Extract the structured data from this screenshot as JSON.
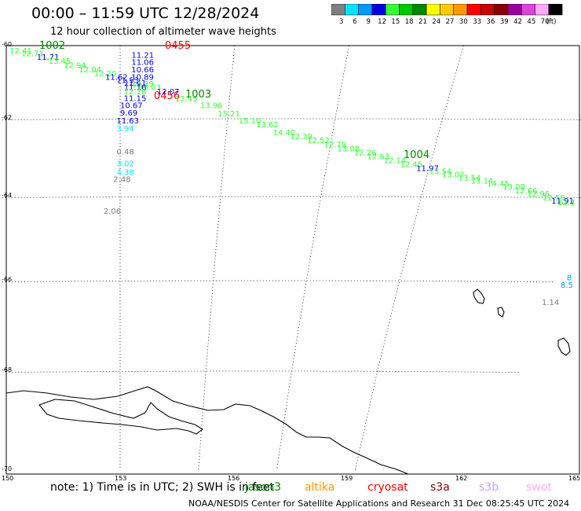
{
  "header": {
    "title": "00:00 – 11:59 UTC 12/28/2024",
    "subtitle": "12 hour collection of altimeter wave heights"
  },
  "color_scale": {
    "unit": "(ft)",
    "bins": [
      {
        "label": "3",
        "color": "#7f7f7f"
      },
      {
        "label": "6",
        "color": "#00e5ff"
      },
      {
        "label": "9",
        "color": "#0099ff"
      },
      {
        "label": "12",
        "color": "#0000e0"
      },
      {
        "label": "15",
        "color": "#33ff33"
      },
      {
        "label": "18",
        "color": "#00c800"
      },
      {
        "label": "21",
        "color": "#008800"
      },
      {
        "label": "24",
        "color": "#ffff00"
      },
      {
        "label": "27",
        "color": "#ffcc00"
      },
      {
        "label": "30",
        "color": "#ff9900"
      },
      {
        "label": "33",
        "color": "#ff0000"
      },
      {
        "label": "36",
        "color": "#cc0000"
      },
      {
        "label": "39",
        "color": "#880000"
      },
      {
        "label": "42",
        "color": "#990099"
      },
      {
        "label": "45",
        "color": "#dd44dd"
      },
      {
        "label": "70",
        "color": "#ffaaff"
      },
      {
        "label": "",
        "color": "#000000"
      }
    ]
  },
  "axes": {
    "lat_labels": [
      "-60",
      "-62",
      "-64",
      "-66",
      "-68",
      "-70"
    ],
    "lon_labels": [
      "150",
      "153",
      "156",
      "159",
      "162",
      "165"
    ]
  },
  "passes": [
    {
      "time": "1002",
      "color": "#008800"
    },
    {
      "time": "0455",
      "color": "#ff0000"
    },
    {
      "time": "0456",
      "color": "#ff0000"
    },
    {
      "time": "1003",
      "color": "#008800"
    },
    {
      "time": "1004",
      "color": "#008800"
    }
  ],
  "observations": [
    {
      "lon": 150.1,
      "lat": -60.04,
      "value": "12.41",
      "color": "#33ff33"
    },
    {
      "lon": 150.4,
      "lat": -60.12,
      "value": "12.71",
      "color": "#33ff33"
    },
    {
      "lon": 150.8,
      "lat": -60.22,
      "value": "11.71",
      "color": "#0000e0"
    },
    {
      "lon": 151.1,
      "lat": -60.32,
      "value": "13.45",
      "color": "#33ff33"
    },
    {
      "lon": 151.5,
      "lat": -60.44,
      "value": "12.94",
      "color": "#33ff33"
    },
    {
      "lon": 151.9,
      "lat": -60.56,
      "value": "12.04",
      "color": "#33ff33"
    },
    {
      "lon": 152.3,
      "lat": -60.67,
      "value": "12.20",
      "color": "#33ff33"
    },
    {
      "lon": 152.6,
      "lat": -60.76,
      "value": "11.62",
      "color": "#0000e0"
    },
    {
      "lon": 152.9,
      "lat": -60.85,
      "value": "11.53",
      "color": "#0000e0"
    },
    {
      "lon": 153.1,
      "lat": -60.93,
      "value": "11.41",
      "color": "#0000e0"
    },
    {
      "lon": 153.5,
      "lat": -61.04,
      "value": "13.03",
      "color": "#33ff33"
    },
    {
      "lon": 153.3,
      "lat": -60.16,
      "value": "11.21",
      "color": "#0000e0"
    },
    {
      "lon": 153.3,
      "lat": -60.36,
      "value": "11.06",
      "color": "#0000e0"
    },
    {
      "lon": 153.3,
      "lat": -60.56,
      "value": "10.66",
      "color": "#0000e0"
    },
    {
      "lon": 153.3,
      "lat": -60.76,
      "value": "10.89",
      "color": "#0000e0"
    },
    {
      "lon": 153.3,
      "lat": -60.95,
      "value": "12.39",
      "color": "#33ff33"
    },
    {
      "lon": 153.1,
      "lat": -61.04,
      "value": "11.16",
      "color": "#0000e0"
    },
    {
      "lon": 153.1,
      "lat": -61.16,
      "value": "12.28",
      "color": "#33ff33"
    },
    {
      "lon": 153.1,
      "lat": -61.34,
      "value": "11.15",
      "color": "#0000e0"
    },
    {
      "lon": 153.0,
      "lat": -61.54,
      "value": "10.67",
      "color": "#0000e0"
    },
    {
      "lon": 153.0,
      "lat": -61.74,
      "value": "9.69",
      "color": "#0000e0"
    },
    {
      "lon": 152.9,
      "lat": -61.96,
      "value": "11.63",
      "color": "#0000e0"
    },
    {
      "lon": 152.9,
      "lat": -62.16,
      "value": "3.94",
      "color": "#00e5ff"
    },
    {
      "lon": 152.9,
      "lat": -62.76,
      "value": "0.48",
      "color": "#7f7f7f"
    },
    {
      "lon": 152.9,
      "lat": -63.06,
      "value": "3.02",
      "color": "#00e5ff"
    },
    {
      "lon": 152.9,
      "lat": -63.28,
      "value": "4.38",
      "color": "#00e5ff"
    },
    {
      "lon": 152.8,
      "lat": -63.46,
      "value": "2.48",
      "color": "#7f7f7f"
    },
    {
      "lon": 152.5,
      "lat": -64.26,
      "value": "2.06",
      "color": "#7f7f7f"
    },
    {
      "lon": 154.0,
      "lat": -61.16,
      "value": "12.07",
      "color": "#0000e0"
    },
    {
      "lon": 154.5,
      "lat": -61.36,
      "value": "12.45",
      "color": "#33ff33"
    },
    {
      "lon": 155.2,
      "lat": -61.54,
      "value": "13.96",
      "color": "#33ff33"
    },
    {
      "lon": 155.7,
      "lat": -61.76,
      "value": "15.21",
      "color": "#33ff33"
    },
    {
      "lon": 156.3,
      "lat": -61.96,
      "value": "15.10",
      "color": "#33ff33"
    },
    {
      "lon": 156.8,
      "lat": -62.06,
      "value": "13.62",
      "color": "#33ff33"
    },
    {
      "lon": 157.3,
      "lat": -62.26,
      "value": "14.40",
      "color": "#33ff33"
    },
    {
      "lon": 157.8,
      "lat": -62.36,
      "value": "12.39",
      "color": "#33ff33"
    },
    {
      "lon": 158.3,
      "lat": -62.46,
      "value": "12.52",
      "color": "#33ff33"
    },
    {
      "lon": 158.8,
      "lat": -62.58,
      "value": "12.78",
      "color": "#33ff33"
    },
    {
      "lon": 159.2,
      "lat": -62.68,
      "value": "13.08",
      "color": "#33ff33"
    },
    {
      "lon": 159.7,
      "lat": -62.78,
      "value": "12.26",
      "color": "#33ff33"
    },
    {
      "lon": 160.1,
      "lat": -62.88,
      "value": "12.63",
      "color": "#33ff33"
    },
    {
      "lon": 160.6,
      "lat": -62.98,
      "value": "12.14",
      "color": "#33ff33"
    },
    {
      "lon": 161.1,
      "lat": -63.08,
      "value": "12.45",
      "color": "#33ff33"
    },
    {
      "lon": 161.6,
      "lat": -63.18,
      "value": "11.97",
      "color": "#0000e0"
    },
    {
      "lon": 162.0,
      "lat": -63.26,
      "value": "13.54",
      "color": "#33ff33"
    },
    {
      "lon": 162.4,
      "lat": -63.34,
      "value": "13.02",
      "color": "#33ff33"
    },
    {
      "lon": 162.9,
      "lat": -63.42,
      "value": "13.54",
      "color": "#33ff33"
    },
    {
      "lon": 163.3,
      "lat": -63.5,
      "value": "13.14",
      "color": "#33ff33"
    },
    {
      "lon": 163.8,
      "lat": -63.58,
      "value": "14.45",
      "color": "#33ff33"
    },
    {
      "lon": 164.3,
      "lat": -63.66,
      "value": "13.09",
      "color": "#33ff33"
    },
    {
      "lon": 164.7,
      "lat": -63.76,
      "value": "12.66",
      "color": "#33ff33"
    },
    {
      "lon": 165.1,
      "lat": -63.84,
      "value": "12.96",
      "color": "#33ff33"
    },
    {
      "lon": 165.6,
      "lat": -63.94,
      "value": "12.56",
      "color": "#33ff33"
    },
    {
      "lon": 165.9,
      "lat": -64.02,
      "value": "11.91",
      "color": "#0000e0"
    },
    {
      "lon": 166.1,
      "lat": -64.06,
      "value": "12.3",
      "color": "#33ff33"
    },
    {
      "lon": 167.3,
      "lat": -65.84,
      "value": "8",
      "color": "#0099ff"
    },
    {
      "lon": 167.2,
      "lat": -66.02,
      "value": "8.5",
      "color": "#0099ff"
    },
    {
      "lon": 166.8,
      "lat": -66.4,
      "value": "1.14",
      "color": "#7f7f7f"
    }
  ],
  "footer": {
    "note": "note:  1) Time is in UTC;  2) SWH is in feet",
    "satellites": [
      {
        "name": "jason3",
        "color": "#008800"
      },
      {
        "name": "altika",
        "color": "#ff9900"
      },
      {
        "name": "cryosat",
        "color": "#ff0000"
      },
      {
        "name": "s3a",
        "color": "#880000"
      },
      {
        "name": "s3b",
        "color": "#bbaaff"
      },
      {
        "name": "swot",
        "color": "#ffaaff"
      }
    ],
    "credit": "NOAA/NESDIS Center for Satellite Applications and Research    31 Dec 08:25:45 UTC 2024"
  }
}
